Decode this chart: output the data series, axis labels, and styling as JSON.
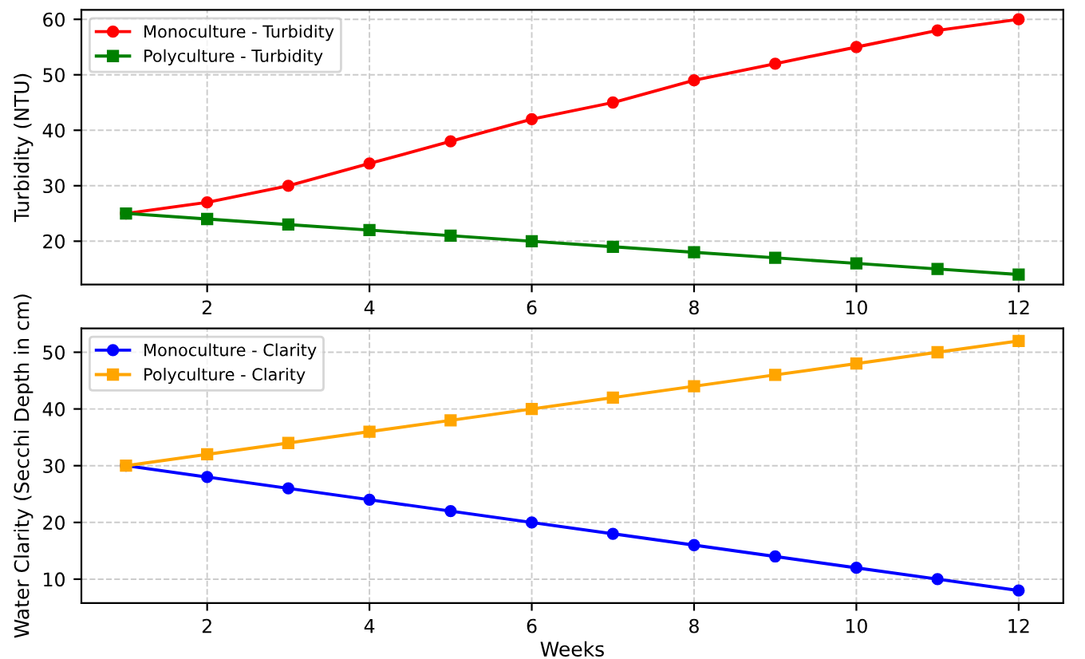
{
  "chart_data": [
    {
      "type": "line",
      "ylabel": "Turbidity (NTU)",
      "x": [
        1,
        2,
        3,
        4,
        5,
        6,
        7,
        8,
        9,
        10,
        11,
        12
      ],
      "xlim": [
        0.45,
        12.55
      ],
      "xticks": [
        2,
        4,
        6,
        8,
        10,
        12
      ],
      "ylim": [
        12.2,
        61.7
      ],
      "yticks": [
        20,
        30,
        40,
        50,
        60
      ],
      "grid": true,
      "legend": "top left",
      "series": [
        {
          "name": "Monoculture - Turbidity",
          "color": "#ff0000",
          "marker": "circle",
          "values": [
            25,
            27,
            30,
            34,
            38,
            42,
            45,
            49,
            52,
            55,
            58,
            60
          ]
        },
        {
          "name": "Polyculture - Turbidity",
          "color": "#008000",
          "marker": "square",
          "values": [
            25,
            24,
            23,
            22,
            21,
            20,
            19,
            18,
            17,
            16,
            15,
            14
          ]
        }
      ]
    },
    {
      "type": "line",
      "xlabel": "Weeks",
      "ylabel": "Water Clarity (Secchi Depth in cm)",
      "x": [
        1,
        2,
        3,
        4,
        5,
        6,
        7,
        8,
        9,
        10,
        11,
        12
      ],
      "xlim": [
        0.45,
        12.55
      ],
      "xticks": [
        2,
        4,
        6,
        8,
        10,
        12
      ],
      "ylim": [
        5.8,
        54.2
      ],
      "yticks": [
        10,
        20,
        30,
        40,
        50
      ],
      "grid": true,
      "legend": "top left",
      "series": [
        {
          "name": "Monoculture - Clarity",
          "color": "#0000ff",
          "marker": "circle",
          "values": [
            30,
            28,
            26,
            24,
            22,
            20,
            18,
            16,
            14,
            12,
            10,
            8
          ]
        },
        {
          "name": "Polyculture - Clarity",
          "color": "#ffa500",
          "marker": "square",
          "values": [
            30,
            32,
            34,
            36,
            38,
            40,
            42,
            44,
            46,
            48,
            50,
            52
          ]
        }
      ]
    }
  ]
}
